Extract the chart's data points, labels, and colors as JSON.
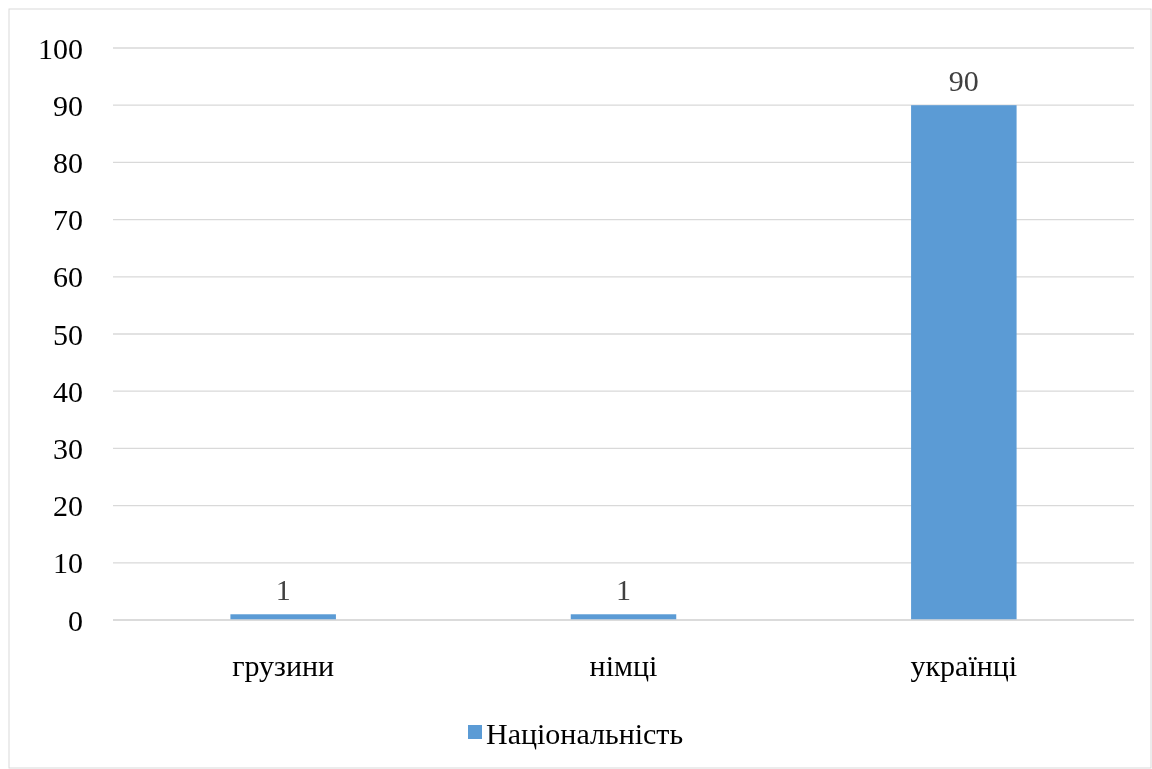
{
  "chart_data": {
    "type": "bar",
    "categories": [
      "грузини",
      "німці",
      "українці"
    ],
    "series": [
      {
        "name": "Національність",
        "color": "#5b9bd5",
        "values": [
          1,
          1,
          90
        ]
      }
    ],
    "ylim": [
      0,
      100
    ],
    "yticks": [
      0,
      10,
      20,
      30,
      40,
      50,
      60,
      70,
      80,
      90,
      100
    ],
    "grid": "y",
    "legend": "bottom",
    "data_labels": true
  }
}
